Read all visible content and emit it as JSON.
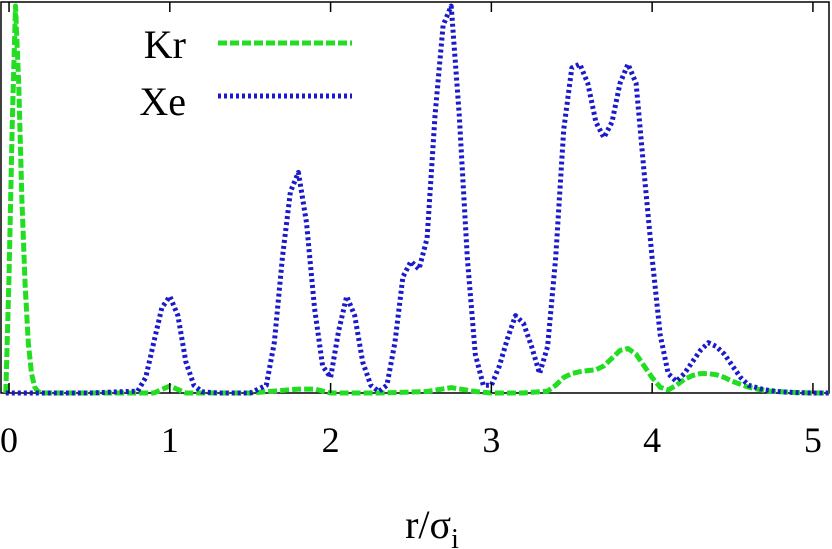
{
  "chart_data": {
    "type": "line",
    "title": "",
    "xlabel": "r/σ",
    "xlabel_subscript": "i",
    "ylabel": "",
    "xlim": [
      -0.05,
      5.1
    ],
    "ylim": [
      0,
      1
    ],
    "xticks": [
      "0",
      "1",
      "2",
      "3",
      "4",
      "5"
    ],
    "grid": false,
    "legend_position": "top-left",
    "series": [
      {
        "name": "Kr",
        "color": "#22dd22",
        "dash": "dashed",
        "x": [
          -0.02,
          0.0,
          0.02,
          0.04,
          0.06,
          0.08,
          0.1,
          0.12,
          0.14,
          0.16,
          0.18,
          0.2,
          0.25,
          0.5,
          0.9,
          1.0,
          1.1,
          1.5,
          1.8,
          1.9,
          2.0,
          2.3,
          2.6,
          2.75,
          2.9,
          3.0,
          3.2,
          3.35,
          3.4,
          3.45,
          3.5,
          3.55,
          3.6,
          3.65,
          3.7,
          3.75,
          3.8,
          3.85,
          3.9,
          3.95,
          4.0,
          4.05,
          4.1,
          4.15,
          4.2,
          4.25,
          4.3,
          4.35,
          4.4,
          4.45,
          4.5,
          4.6,
          4.7,
          4.8,
          4.9,
          5.0,
          5.1
        ],
        "y": [
          0.0,
          0.3,
          0.7,
          1.0,
          0.8,
          0.5,
          0.28,
          0.13,
          0.05,
          0.015,
          0.004,
          0.0,
          0.0,
          0.0,
          0.0,
          0.018,
          0.0,
          0.0,
          0.01,
          0.01,
          0.0,
          0.0,
          0.004,
          0.014,
          0.004,
          0.0,
          0.0,
          0.005,
          0.02,
          0.04,
          0.05,
          0.055,
          0.058,
          0.06,
          0.07,
          0.09,
          0.11,
          0.115,
          0.1,
          0.07,
          0.04,
          0.015,
          0.008,
          0.02,
          0.035,
          0.045,
          0.05,
          0.05,
          0.047,
          0.04,
          0.03,
          0.015,
          0.006,
          0.003,
          0.001,
          0.0,
          0.0
        ]
      },
      {
        "name": "Xe",
        "color": "#1a1acc",
        "dash": "dotted",
        "x": [
          -0.02,
          0.1,
          0.5,
          0.8,
          0.85,
          0.9,
          0.95,
          1.0,
          1.05,
          1.1,
          1.15,
          1.2,
          1.3,
          1.5,
          1.6,
          1.65,
          1.7,
          1.75,
          1.8,
          1.85,
          1.9,
          1.95,
          2.0,
          2.05,
          2.1,
          2.15,
          2.2,
          2.25,
          2.3,
          2.35,
          2.4,
          2.45,
          2.5,
          2.55,
          2.6,
          2.65,
          2.7,
          2.75,
          2.8,
          2.85,
          2.9,
          2.95,
          3.0,
          3.05,
          3.1,
          3.15,
          3.2,
          3.25,
          3.3,
          3.35,
          3.4,
          3.45,
          3.5,
          3.55,
          3.6,
          3.65,
          3.7,
          3.75,
          3.8,
          3.85,
          3.9,
          3.95,
          4.0,
          4.05,
          4.1,
          4.15,
          4.2,
          4.25,
          4.3,
          4.35,
          4.4,
          4.45,
          4.5,
          4.55,
          4.6,
          4.7,
          4.8,
          4.9,
          5.0,
          5.1
        ],
        "y": [
          0.0,
          0.0,
          0.0,
          0.005,
          0.04,
          0.13,
          0.22,
          0.25,
          0.2,
          0.08,
          0.02,
          0.003,
          0.0,
          0.0,
          0.02,
          0.13,
          0.35,
          0.52,
          0.57,
          0.44,
          0.22,
          0.07,
          0.04,
          0.16,
          0.25,
          0.2,
          0.08,
          0.02,
          0.004,
          0.02,
          0.13,
          0.3,
          0.34,
          0.32,
          0.4,
          0.72,
          0.95,
          1.0,
          0.72,
          0.35,
          0.1,
          0.02,
          0.02,
          0.07,
          0.14,
          0.2,
          0.18,
          0.12,
          0.05,
          0.12,
          0.35,
          0.68,
          0.84,
          0.85,
          0.8,
          0.7,
          0.66,
          0.7,
          0.8,
          0.85,
          0.8,
          0.57,
          0.35,
          0.15,
          0.05,
          0.03,
          0.05,
          0.08,
          0.11,
          0.13,
          0.12,
          0.1,
          0.07,
          0.04,
          0.02,
          0.008,
          0.003,
          0.001,
          0.0,
          0.0
        ]
      }
    ]
  }
}
